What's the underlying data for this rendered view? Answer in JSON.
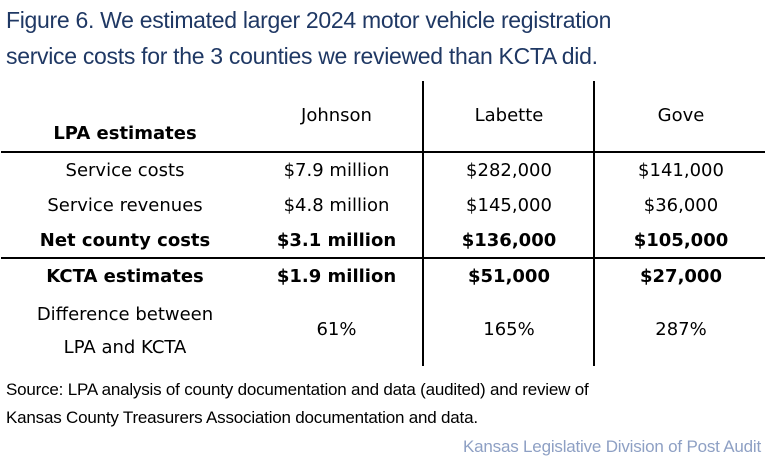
{
  "title": {
    "line1": "Figure 6. We estimated larger 2024 motor vehicle registration",
    "line2": "service costs for the 3 counties we reviewed than KCTA did."
  },
  "table": {
    "header": {
      "row_label": "LPA estimates",
      "columns": [
        "Johnson",
        "Labette",
        "Gove"
      ]
    },
    "rows": [
      {
        "label": "Service costs",
        "values": [
          "$7.9 million",
          "$282,000",
          "$141,000"
        ],
        "bold": false
      },
      {
        "label": "Service revenues",
        "values": [
          "$4.8 million",
          "$145,000",
          "$36,000"
        ],
        "bold": false
      },
      {
        "label": "Net county costs",
        "values": [
          "$3.1 million",
          "$136,000",
          "$105,000"
        ],
        "bold": true
      },
      {
        "label": "KCTA estimates",
        "values": [
          "$1.9 million",
          "$51,000",
          "$27,000"
        ],
        "bold": true
      },
      {
        "label_line1": "Difference between",
        "label_line2": "LPA and KCTA",
        "values": [
          "61%",
          "165%",
          "287%"
        ],
        "bold": false
      }
    ]
  },
  "source": {
    "line1": "Source: LPA analysis of county documentation and data (audited) and review of",
    "line2": "Kansas County Treasurers Association documentation and data."
  },
  "credit": "Kansas Legislative Division of Post Audit",
  "colors": {
    "title": "#1f3864",
    "credit": "#8ea0c4",
    "text": "#000000"
  }
}
